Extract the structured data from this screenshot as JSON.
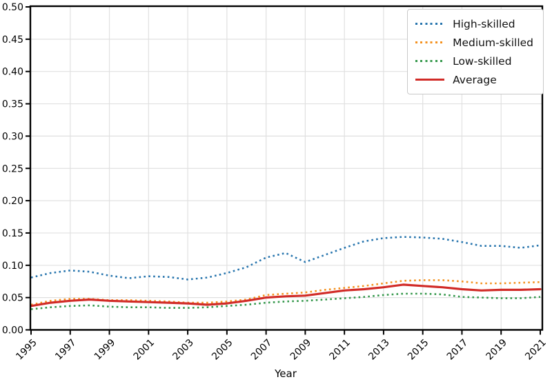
{
  "chart_data": {
    "type": "line",
    "title": "",
    "xlabel": "Year",
    "ylabel": "",
    "grid": true,
    "legend_position": "upper right",
    "xlim": [
      1995,
      2021
    ],
    "ylim": [
      0.0,
      0.5
    ],
    "xticks": [
      1995,
      1997,
      1999,
      2001,
      2003,
      2005,
      2007,
      2009,
      2011,
      2013,
      2015,
      2017,
      2019,
      2021
    ],
    "yticks": [
      0.0,
      0.05,
      0.1,
      0.15,
      0.2,
      0.25,
      0.3,
      0.35,
      0.4,
      0.45,
      0.5
    ],
    "x": [
      1995,
      1996,
      1997,
      1998,
      1999,
      2000,
      2001,
      2002,
      2003,
      2004,
      2005,
      2006,
      2007,
      2008,
      2009,
      2010,
      2011,
      2012,
      2013,
      2014,
      2015,
      2016,
      2017,
      2018,
      2019,
      2020,
      2021
    ],
    "series": [
      {
        "name": "High-skilled",
        "color": "#2674ad",
        "style": "dotted",
        "width": 2.6,
        "values": [
          0.081,
          0.088,
          0.092,
          0.09,
          0.084,
          0.08,
          0.083,
          0.082,
          0.078,
          0.081,
          0.088,
          0.097,
          0.112,
          0.119,
          0.105,
          0.116,
          0.127,
          0.137,
          0.142,
          0.144,
          0.143,
          0.141,
          0.136,
          0.13,
          0.13,
          0.127,
          0.131
        ]
      },
      {
        "name": "Medium-skilled",
        "color": "#f4911e",
        "style": "dotted",
        "width": 2.6,
        "values": [
          0.039,
          0.045,
          0.048,
          0.048,
          0.046,
          0.046,
          0.045,
          0.044,
          0.042,
          0.042,
          0.044,
          0.047,
          0.054,
          0.056,
          0.058,
          0.062,
          0.065,
          0.068,
          0.072,
          0.076,
          0.077,
          0.077,
          0.075,
          0.072,
          0.072,
          0.073,
          0.074
        ]
      },
      {
        "name": "Low-skilled",
        "color": "#33974a",
        "style": "dotted",
        "width": 2.6,
        "values": [
          0.032,
          0.035,
          0.037,
          0.038,
          0.036,
          0.035,
          0.035,
          0.034,
          0.034,
          0.035,
          0.037,
          0.039,
          0.042,
          0.044,
          0.045,
          0.047,
          0.049,
          0.051,
          0.054,
          0.056,
          0.056,
          0.055,
          0.051,
          0.05,
          0.049,
          0.049,
          0.051
        ]
      },
      {
        "name": "Average",
        "color": "#d12b27",
        "style": "solid",
        "width": 3.2,
        "values": [
          0.037,
          0.042,
          0.045,
          0.047,
          0.045,
          0.044,
          0.043,
          0.042,
          0.041,
          0.039,
          0.041,
          0.045,
          0.05,
          0.052,
          0.053,
          0.057,
          0.061,
          0.063,
          0.066,
          0.07,
          0.068,
          0.066,
          0.063,
          0.061,
          0.062,
          0.062,
          0.063
        ]
      }
    ],
    "style_hints": {
      "grid_color": "#e0e0e0",
      "spine_color": "#000000",
      "tick_label_color": "#000000",
      "x_tick_rotation_deg": 45
    }
  }
}
